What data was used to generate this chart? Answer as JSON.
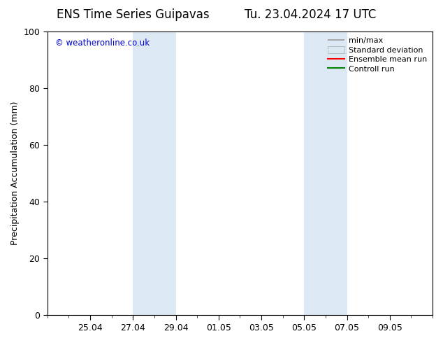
{
  "title_left": "ENS Time Series Guipavas",
  "title_right": "Tu. 23.04.2024 17 UTC",
  "ylabel": "Precipitation Accumulation (mm)",
  "ylim": [
    0,
    100
  ],
  "yticks": [
    0,
    20,
    40,
    60,
    80,
    100
  ],
  "background_color": "#ffffff",
  "plot_bg_color": "#ffffff",
  "watermark_text": "© weatheronline.co.uk",
  "watermark_color": "#0000cc",
  "shaded_regions": [
    {
      "x_start": 4,
      "x_end": 6,
      "color": "#dce9f5"
    },
    {
      "x_start": 12,
      "x_end": 14,
      "color": "#dce9f5"
    }
  ],
  "x_tick_labels": [
    "25.04",
    "27.04",
    "29.04",
    "01.05",
    "03.05",
    "05.05",
    "07.05",
    "09.05"
  ],
  "x_tick_positions": [
    2,
    4,
    6,
    8,
    10,
    12,
    14,
    16
  ],
  "xlim_left": 0,
  "xlim_right": 18,
  "legend_items": [
    {
      "label": "min/max",
      "color": "#aaaaaa",
      "lw": 1.5,
      "style": "minmax"
    },
    {
      "label": "Standard deviation",
      "color": "#dce9f5",
      "lw": 8,
      "style": "bar"
    },
    {
      "label": "Ensemble mean run",
      "color": "#ff0000",
      "lw": 1.5,
      "style": "line"
    },
    {
      "label": "Controll run",
      "color": "#008000",
      "lw": 1.5,
      "style": "line"
    }
  ],
  "title_fontsize": 12,
  "tick_label_fontsize": 9,
  "ylabel_fontsize": 9
}
